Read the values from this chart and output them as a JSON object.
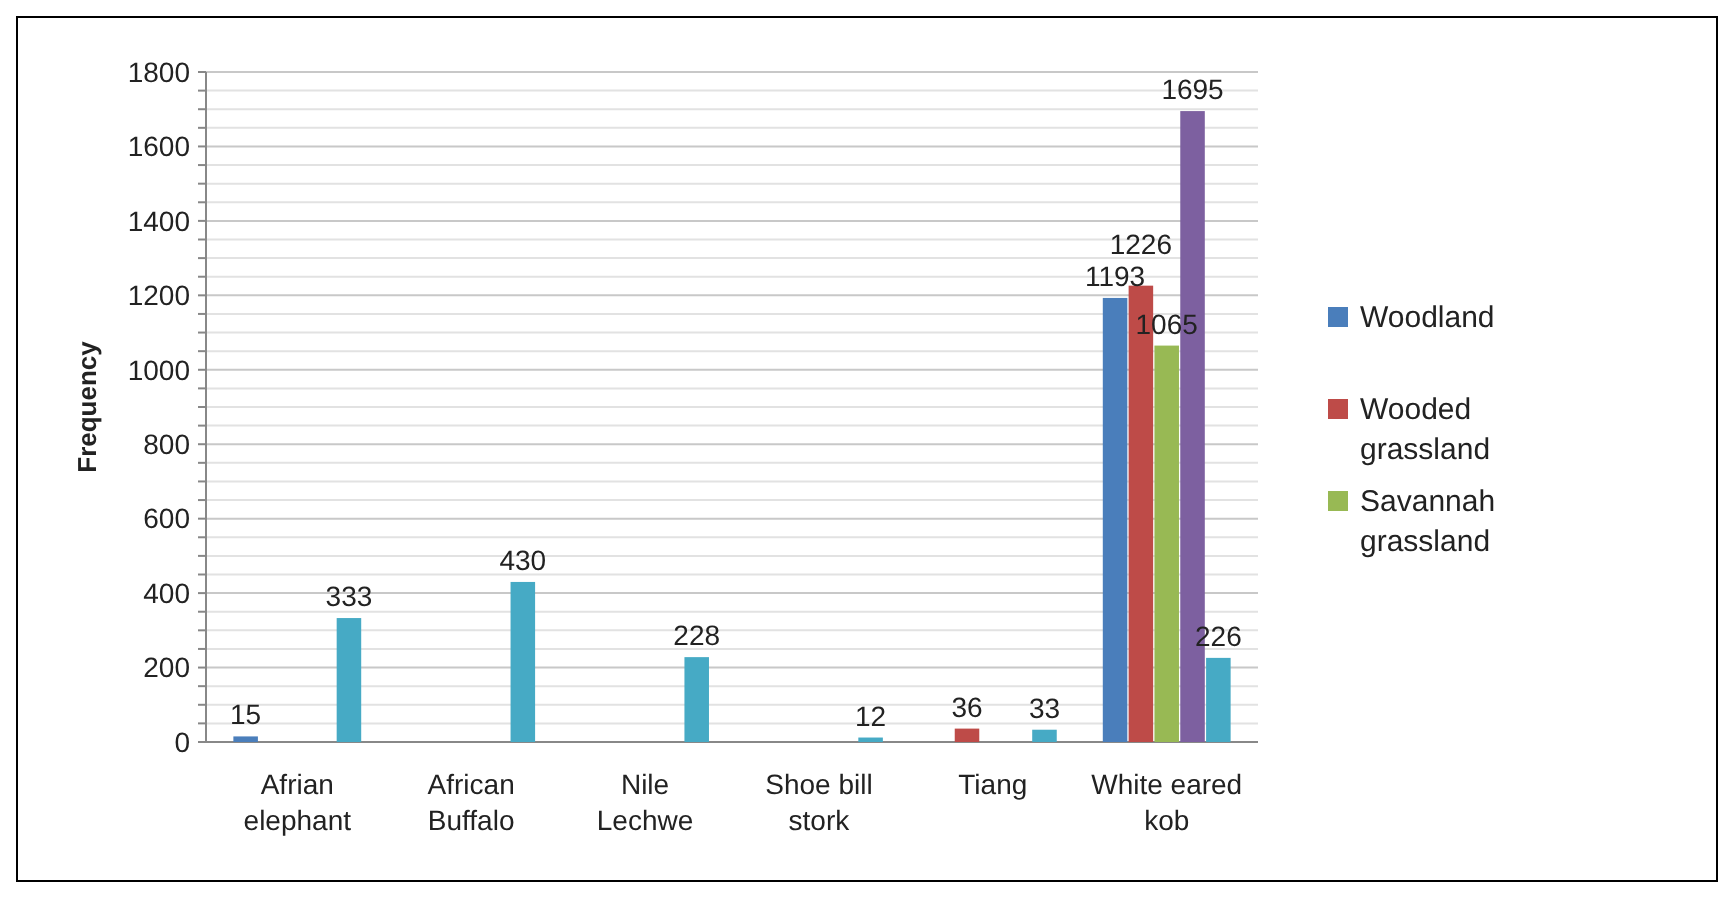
{
  "chart_data": {
    "type": "bar",
    "ylabel": "Frequency",
    "categories": [
      "Afrian elephant",
      "African Buffalo",
      "Nile Lechwe",
      "Shoe bill stork",
      "Tiang",
      "White eared kob"
    ],
    "series": [
      {
        "name": "Woodland",
        "color": "#4a7ebb",
        "values": [
          15,
          null,
          null,
          null,
          null,
          1193
        ],
        "value_labels": [
          "15",
          null,
          null,
          null,
          null,
          "1193"
        ]
      },
      {
        "name": "Wooded grassland",
        "color": "#be4b48",
        "values": [
          null,
          null,
          null,
          null,
          36,
          1226
        ],
        "value_labels": [
          null,
          null,
          null,
          null,
          "36",
          "1226"
        ]
      },
      {
        "name": "Savannah grassland",
        "color": "#98b954",
        "values": [
          null,
          null,
          null,
          null,
          null,
          1065
        ],
        "value_labels": [
          null,
          null,
          null,
          null,
          null,
          "1065"
        ]
      },
      {
        "color": "#7d60a0",
        "values": [
          null,
          null,
          null,
          null,
          null,
          1695
        ],
        "value_labels": [
          null,
          null,
          null,
          null,
          null,
          "1695"
        ]
      },
      {
        "color": "#46aac5",
        "values": [
          333,
          430,
          228,
          12,
          33,
          226
        ],
        "value_labels": [
          "333",
          "430",
          "228",
          "12",
          "33",
          "226"
        ]
      }
    ],
    "ylim": [
      0,
      1800
    ],
    "yticks": [
      0,
      {
        "value": 50,
        "label": null
      },
      {
        "value": 100,
        "label": null
      },
      {
        "value": 150,
        "label": null
      },
      200,
      {
        "value": 250,
        "label": null
      },
      {
        "value": 300,
        "label": null
      },
      {
        "value": 350,
        "label": null
      },
      400,
      {
        "value": 450,
        "label": null
      },
      {
        "value": 500,
        "label": null
      },
      {
        "value": 550,
        "label": null
      },
      600,
      {
        "value": 650,
        "label": null
      },
      {
        "value": 700,
        "label": null
      },
      {
        "value": 750,
        "label": null
      },
      800,
      {
        "value": 850,
        "label": null
      },
      {
        "value": 900,
        "label": null
      },
      {
        "value": 950,
        "label": null
      },
      1000,
      {
        "value": 1050,
        "label": null
      },
      {
        "value": 1100,
        "label": null
      },
      {
        "value": 1150,
        "label": null
      },
      1200,
      {
        "value": 1250,
        "label": null
      },
      {
        "value": 1300,
        "label": null
      },
      {
        "value": 1350,
        "label": null
      },
      1400,
      {
        "value": 1450,
        "label": null
      },
      {
        "value": 1500,
        "label": null
      },
      {
        "value": 1550,
        "label": null
      },
      1600,
      {
        "value": 1650,
        "label": null
      },
      {
        "value": 1700,
        "label": null
      },
      {
        "value": 1750,
        "label": null
      },
      1800
    ],
    "grid": "y",
    "legend": "right"
  }
}
